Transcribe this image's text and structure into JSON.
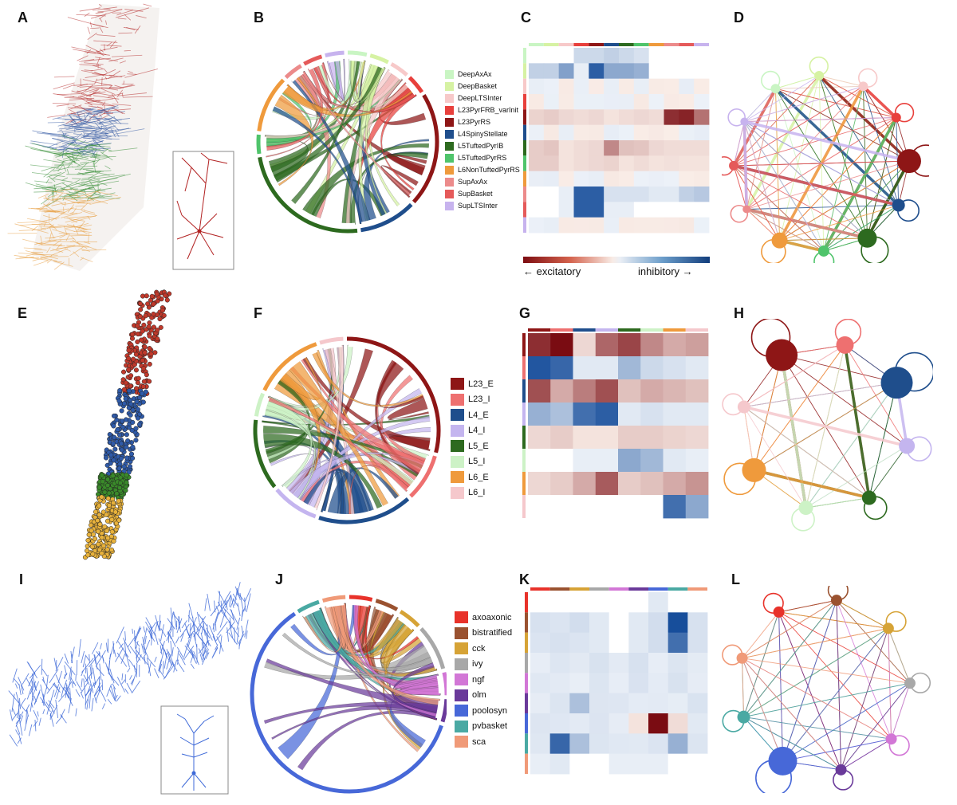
{
  "panel_labels": [
    "A",
    "B",
    "C",
    "D",
    "E",
    "F",
    "G",
    "H",
    "I",
    "J",
    "K",
    "L"
  ],
  "row1": {
    "populations": [
      {
        "name": "DeepAxAx",
        "color": "#c9f5c3"
      },
      {
        "name": "DeepBasket",
        "color": "#d6f2a3"
      },
      {
        "name": "DeepLTSInter",
        "color": "#f7c9c9"
      },
      {
        "name": "L23PyrFRB_varInit",
        "color": "#e8403c"
      },
      {
        "name": "L23PyrRS",
        "color": "#8e1616"
      },
      {
        "name": "L4SpinyStellate",
        "color": "#1f4e8c"
      },
      {
        "name": "L5TuftedPyrIB",
        "color": "#2d6a1f"
      },
      {
        "name": "L5TuftedPyrRS",
        "color": "#4fc46b"
      },
      {
        "name": "L6NonTuftedPyrRS",
        "color": "#ef9a3c"
      },
      {
        "name": "SupAxAx",
        "color": "#ec8b8b"
      },
      {
        "name": "SupBasket",
        "color": "#e55a5a"
      },
      {
        "name": "SupLTSInter",
        "color": "#c7b3ee"
      }
    ],
    "colorbar": {
      "left_label": "← excitatory",
      "right_label": "inhibitory →"
    }
  },
  "row2": {
    "populations": [
      {
        "name": "L23_E",
        "color": "#8e1616"
      },
      {
        "name": "L23_I",
        "color": "#ee7070"
      },
      {
        "name": "L4_E",
        "color": "#1f4e8c"
      },
      {
        "name": "L4_I",
        "color": "#c4b5ef"
      },
      {
        "name": "L5_E",
        "color": "#2d6a1f"
      },
      {
        "name": "L5_I",
        "color": "#cdf2c6"
      },
      {
        "name": "L6_E",
        "color": "#ef9a3c"
      },
      {
        "name": "L6_I",
        "color": "#f5c8cc"
      }
    ]
  },
  "row3": {
    "populations": [
      {
        "name": "axoaxonic",
        "color": "#e8322a"
      },
      {
        "name": "bistratified",
        "color": "#9a5230"
      },
      {
        "name": "cck",
        "color": "#d6a336"
      },
      {
        "name": "ivy",
        "color": "#a8a8a8"
      },
      {
        "name": "ngf",
        "color": "#d277d6"
      },
      {
        "name": "olm",
        "color": "#6a3a9a"
      },
      {
        "name": "poolosyn",
        "color": "#4768d8"
      },
      {
        "name": "pvbasket",
        "color": "#4aa9a3"
      },
      {
        "name": "sca",
        "color": "#f09a78"
      }
    ]
  }
}
